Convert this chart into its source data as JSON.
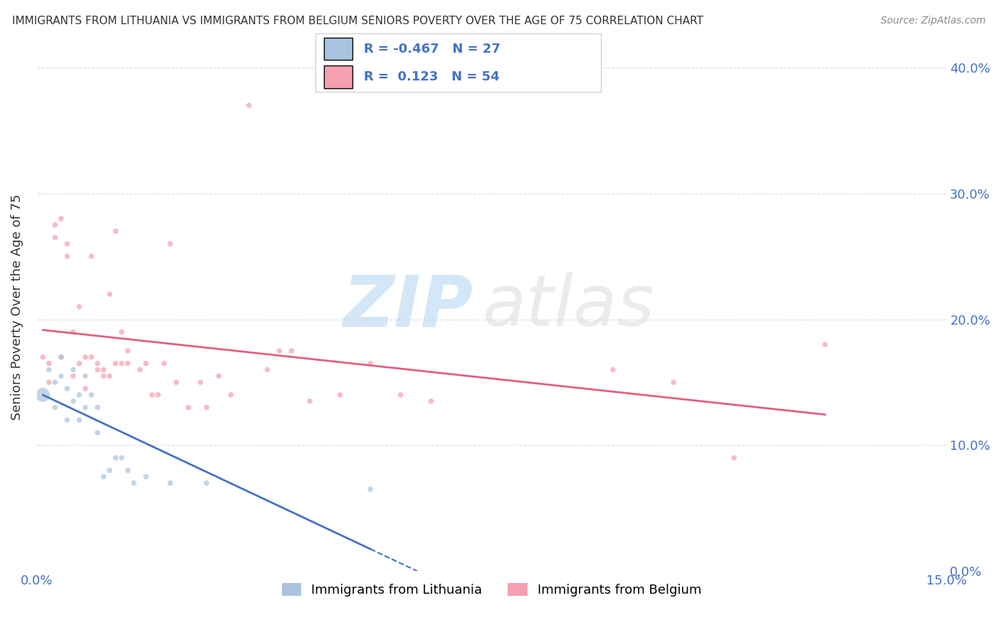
{
  "title": "IMMIGRANTS FROM LITHUANIA VS IMMIGRANTS FROM BELGIUM SENIORS POVERTY OVER THE AGE OF 75 CORRELATION CHART",
  "source": "Source: ZipAtlas.com",
  "ylabel": "Seniors Poverty Over the Age of 75",
  "xlabel_lithuania": "Immigrants from Lithuania",
  "xlabel_belgium": "Immigrants from Belgium",
  "xlim": [
    0.0,
    0.15
  ],
  "ylim": [
    0.0,
    0.42
  ],
  "yticks": [
    0.0,
    0.1,
    0.2,
    0.3,
    0.4
  ],
  "xticks": [
    0.0,
    0.15
  ],
  "r_lithuania": -0.467,
  "n_lithuania": 27,
  "r_belgium": 0.123,
  "n_belgium": 54,
  "color_lithuania": "#a8c4e0",
  "color_belgium": "#f4a0b0",
  "line_color_lithuania": "#4472c4",
  "line_color_belgium": "#e06080",
  "watermark_zip": "ZIP",
  "watermark_atlas": "atlas",
  "lithuania_x": [
    0.001,
    0.002,
    0.003,
    0.003,
    0.004,
    0.004,
    0.005,
    0.005,
    0.006,
    0.006,
    0.007,
    0.007,
    0.008,
    0.008,
    0.009,
    0.01,
    0.01,
    0.011,
    0.012,
    0.013,
    0.014,
    0.015,
    0.016,
    0.018,
    0.022,
    0.028,
    0.055
  ],
  "lithuania_y": [
    0.14,
    0.16,
    0.13,
    0.15,
    0.155,
    0.17,
    0.12,
    0.145,
    0.135,
    0.16,
    0.14,
    0.12,
    0.155,
    0.13,
    0.14,
    0.11,
    0.13,
    0.075,
    0.08,
    0.09,
    0.09,
    0.08,
    0.07,
    0.075,
    0.07,
    0.07,
    0.065
  ],
  "lithuania_sizes": [
    200,
    30,
    30,
    30,
    30,
    30,
    30,
    30,
    30,
    30,
    30,
    30,
    30,
    30,
    30,
    30,
    30,
    30,
    30,
    30,
    30,
    30,
    30,
    30,
    30,
    30,
    30
  ],
  "belgium_x": [
    0.001,
    0.002,
    0.002,
    0.003,
    0.003,
    0.004,
    0.004,
    0.005,
    0.005,
    0.006,
    0.006,
    0.007,
    0.007,
    0.008,
    0.008,
    0.009,
    0.009,
    0.01,
    0.01,
    0.011,
    0.011,
    0.012,
    0.012,
    0.013,
    0.013,
    0.014,
    0.014,
    0.015,
    0.015,
    0.017,
    0.018,
    0.019,
    0.02,
    0.021,
    0.022,
    0.023,
    0.025,
    0.027,
    0.028,
    0.03,
    0.032,
    0.035,
    0.038,
    0.04,
    0.042,
    0.045,
    0.05,
    0.055,
    0.06,
    0.065,
    0.095,
    0.105,
    0.115,
    0.13
  ],
  "belgium_y": [
    0.17,
    0.165,
    0.15,
    0.275,
    0.265,
    0.17,
    0.28,
    0.26,
    0.25,
    0.155,
    0.19,
    0.21,
    0.165,
    0.17,
    0.145,
    0.25,
    0.17,
    0.165,
    0.16,
    0.155,
    0.16,
    0.22,
    0.155,
    0.27,
    0.165,
    0.165,
    0.19,
    0.175,
    0.165,
    0.16,
    0.165,
    0.14,
    0.14,
    0.165,
    0.26,
    0.15,
    0.13,
    0.15,
    0.13,
    0.155,
    0.14,
    0.37,
    0.16,
    0.175,
    0.175,
    0.135,
    0.14,
    0.165,
    0.14,
    0.135,
    0.16,
    0.15,
    0.09,
    0.18
  ],
  "belgium_sizes": [
    30,
    30,
    30,
    30,
    30,
    30,
    30,
    30,
    30,
    30,
    30,
    30,
    30,
    30,
    30,
    30,
    30,
    30,
    30,
    30,
    30,
    30,
    30,
    30,
    30,
    30,
    30,
    30,
    30,
    30,
    30,
    30,
    30,
    30,
    30,
    30,
    30,
    30,
    30,
    30,
    30,
    30,
    30,
    30,
    30,
    30,
    30,
    30,
    30,
    30,
    30,
    30,
    30,
    30
  ]
}
